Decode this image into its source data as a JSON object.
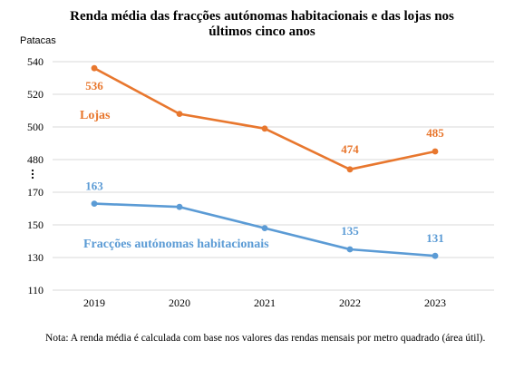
{
  "chart_data": {
    "type": "line",
    "title": [
      "Renda média das fracções autónomas habitacionais e das lojas nos",
      "últimos cinco anos"
    ],
    "ylabel": "Patacas",
    "x": [
      "2019",
      "2020",
      "2021",
      "2022",
      "2023"
    ],
    "y_axis": {
      "broken": true,
      "upper_ticks": [
        "540",
        "520",
        "500",
        "480"
      ],
      "upper_range": [
        470,
        550
      ],
      "lower_ticks": [
        "170",
        "150",
        "130",
        "110"
      ],
      "lower_range": [
        110,
        180
      ]
    },
    "grid": true,
    "series": [
      {
        "name": "Lojas",
        "color": "#E8772E",
        "values": [
          536,
          508,
          499,
          474,
          485
        ],
        "labels": [
          "536",
          "",
          "",
          "474",
          "485"
        ]
      },
      {
        "name": "Fracções autónomas habitacionais",
        "color": "#5B9BD5",
        "values": [
          163,
          161,
          148,
          135,
          131
        ],
        "labels": [
          "163",
          "",
          "",
          "135",
          "131"
        ]
      }
    ],
    "note": "Nota: A renda média é calculada com base nos valores das rendas mensais por metro quadrado (área útil)."
  }
}
